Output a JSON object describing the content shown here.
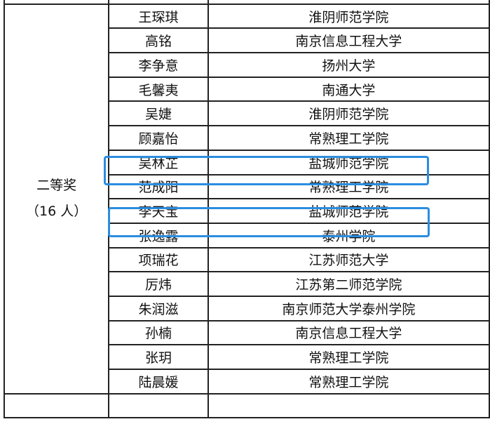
{
  "award": {
    "level": "二等奖",
    "count": "（16 人）"
  },
  "rows": [
    {
      "name": "王琛琪",
      "school": "淮阴师范学院"
    },
    {
      "name": "高铭",
      "school": "南京信息工程大学"
    },
    {
      "name": "李争意",
      "school": "扬州大学"
    },
    {
      "name": "毛馨夷",
      "school": "南通大学"
    },
    {
      "name": "吴婕",
      "school": "淮阴师范学院"
    },
    {
      "name": "顾嘉怡",
      "school": "常熟理工学院"
    },
    {
      "name": "吴林芷",
      "school": "盐城师范学院"
    },
    {
      "name": "范成阳",
      "school": "常熟理工学院"
    },
    {
      "name": "李天宝",
      "school": "盐城师范学院"
    },
    {
      "name": "张逸露",
      "school": "泰州学院"
    },
    {
      "name": "项瑞花",
      "school": "江苏师范大学"
    },
    {
      "name": "厉炜",
      "school": "江苏第二师范学院"
    },
    {
      "name": "朱润滋",
      "school": "南京师范大学泰州学院"
    },
    {
      "name": "孙楠",
      "school": "南京信息工程大学"
    },
    {
      "name": "张玥",
      "school": "常熟理工学院"
    },
    {
      "name": "陆晨媛",
      "school": "常熟理工学院"
    }
  ],
  "highlight_color": "#2b8de0"
}
